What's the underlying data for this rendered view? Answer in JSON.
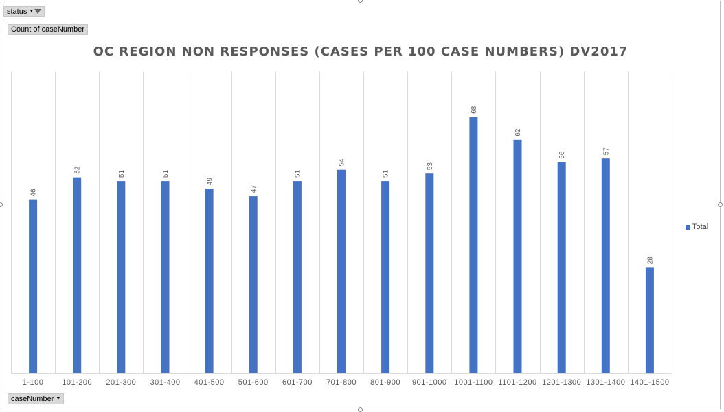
{
  "filters": {
    "status_label": "status",
    "value_field_label": "Count of caseNumber",
    "axis_field_label": "caseNumber"
  },
  "colors": {
    "bar": "#4472c4",
    "title": "#595959",
    "grid": "#d9d9d9",
    "label": "#595959"
  },
  "chart_data": {
    "type": "bar",
    "title": "OC REGION NON RESPONSES (CASES PER 100 CASE NUMBERS) DV2017",
    "xlabel": "",
    "ylabel": "",
    "categories": [
      "1-100",
      "101-200",
      "201-300",
      "301-400",
      "401-500",
      "501-600",
      "601-700",
      "701-800",
      "801-900",
      "901-1000",
      "1001-1100",
      "1101-1200",
      "1201-1300",
      "1301-1400",
      "1401-1500"
    ],
    "series": [
      {
        "name": "Total",
        "values": [
          46,
          52,
          51,
          51,
          49,
          47,
          51,
          54,
          51,
          53,
          68,
          62,
          56,
          57,
          28
        ]
      }
    ],
    "ylim": [
      0,
      80
    ],
    "grid": "vertical category separators",
    "legend": "right",
    "data_labels": true
  }
}
